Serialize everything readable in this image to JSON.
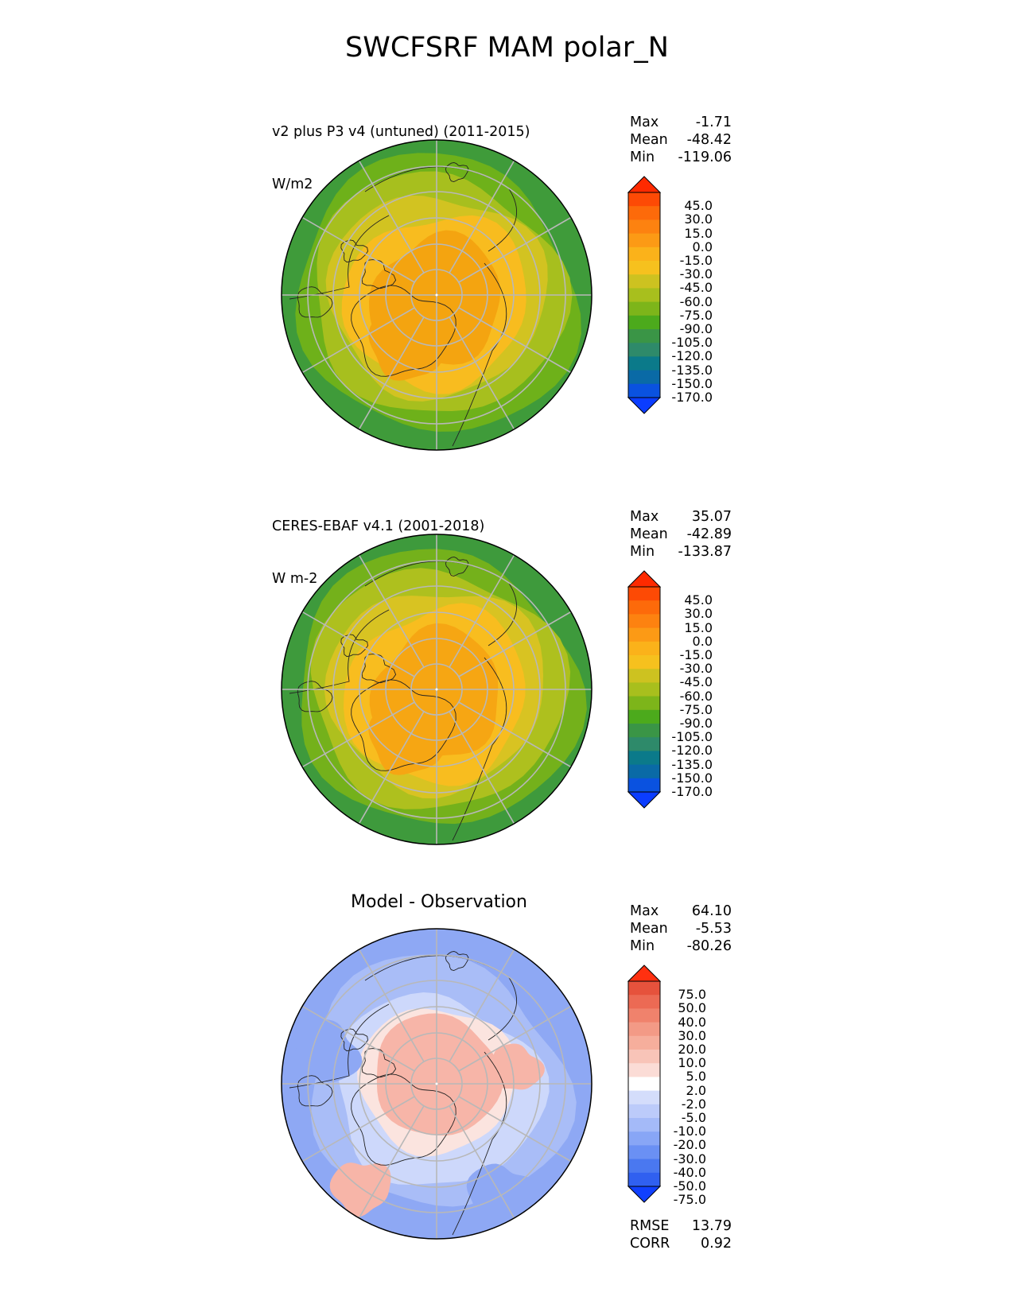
{
  "figure": {
    "title": "SWCFSRF MAM polar_N"
  },
  "panels": [
    {
      "id": "test",
      "title_line1": "v2 plus P3 v4 (untuned) (2011-2015)",
      "title_line2": "W/m2",
      "stats": {
        "max_label": "Max",
        "max": "-1.71",
        "mean_label": "Mean",
        "mean": "-48.42",
        "min_label": "Min",
        "min": "-119.06"
      },
      "colorbar_labels": [
        "45.0",
        "30.0",
        "15.0",
        "0.0",
        "-15.0",
        "-30.0",
        "-45.0",
        "-60.0",
        "-75.0",
        "-90.0",
        "-105.0",
        "-120.0",
        "-135.0",
        "-150.0",
        "-170.0"
      ]
    },
    {
      "id": "reference",
      "title_line1": "CERES-EBAF v4.1 (2001-2018)",
      "title_line2": "W m-2",
      "stats": {
        "max_label": "Max",
        "max": "35.07",
        "mean_label": "Mean",
        "mean": "-42.89",
        "min_label": "Min",
        "min": "-133.87"
      },
      "colorbar_labels": [
        "45.0",
        "30.0",
        "15.0",
        "0.0",
        "-15.0",
        "-30.0",
        "-45.0",
        "-60.0",
        "-75.0",
        "-90.0",
        "-105.0",
        "-120.0",
        "-135.0",
        "-150.0",
        "-170.0"
      ]
    },
    {
      "id": "difference",
      "title_center": "Model - Observation",
      "stats": {
        "max_label": "Max",
        "max": "64.10",
        "mean_label": "Mean",
        "mean": "-5.53",
        "min_label": "Min",
        "min": "-80.26"
      },
      "colorbar_labels": [
        "75.0",
        "50.0",
        "40.0",
        "30.0",
        "20.0",
        "10.0",
        "5.0",
        "2.0",
        "-2.0",
        "-5.0",
        "-10.0",
        "-20.0",
        "-30.0",
        "-40.0",
        "-50.0",
        "-75.0"
      ],
      "metrics": {
        "rmse_label": "RMSE",
        "rmse": "13.79",
        "corr_label": "CORR",
        "corr": "0.92"
      }
    }
  ],
  "chart_data": {
    "type": "heatmap",
    "projection": "north polar stereographic",
    "region": "polar_N",
    "season": "MAM",
    "variable": "SWCFSRF",
    "colors": {
      "field_scale": [
        "#0b3dff",
        "#0a52e0",
        "#0a6aa6",
        "#0b7a8a",
        "#2e8a6a",
        "#3a9546",
        "#4caa1c",
        "#7db51a",
        "#a8bf1d",
        "#cdc220",
        "#f6c11e",
        "#fbb21a",
        "#fc9a15",
        "#fd8210",
        "#fd6a0a",
        "#fd4a05",
        "#fe2a00"
      ],
      "diff_scale": [
        "#1040ff",
        "#3060f0",
        "#4a78f0",
        "#6a90f4",
        "#88a6f6",
        "#a4baf8",
        "#bccbfa",
        "#d4ddfb",
        "#ffffff",
        "#fbdcd6",
        "#f8c4b8",
        "#f6ae9c",
        "#f39a86",
        "#f0826c",
        "#ec6a54",
        "#e6523c",
        "#ff3010"
      ],
      "panel1_zones": [
        "#f4a410",
        "#f8bc1f",
        "#d2c321",
        "#a7bf1e",
        "#6eb11a",
        "#3f9b3a"
      ],
      "panel2_zones": [
        "#f6a613",
        "#f8bd1f",
        "#d8c322",
        "#aec01e",
        "#74b11b",
        "#3e9a3c"
      ],
      "diff_zones": [
        "#f7b5a8",
        "#fbe4df",
        "#cdd8fb",
        "#a9bdf7",
        "#8ea8f4"
      ]
    }
  }
}
